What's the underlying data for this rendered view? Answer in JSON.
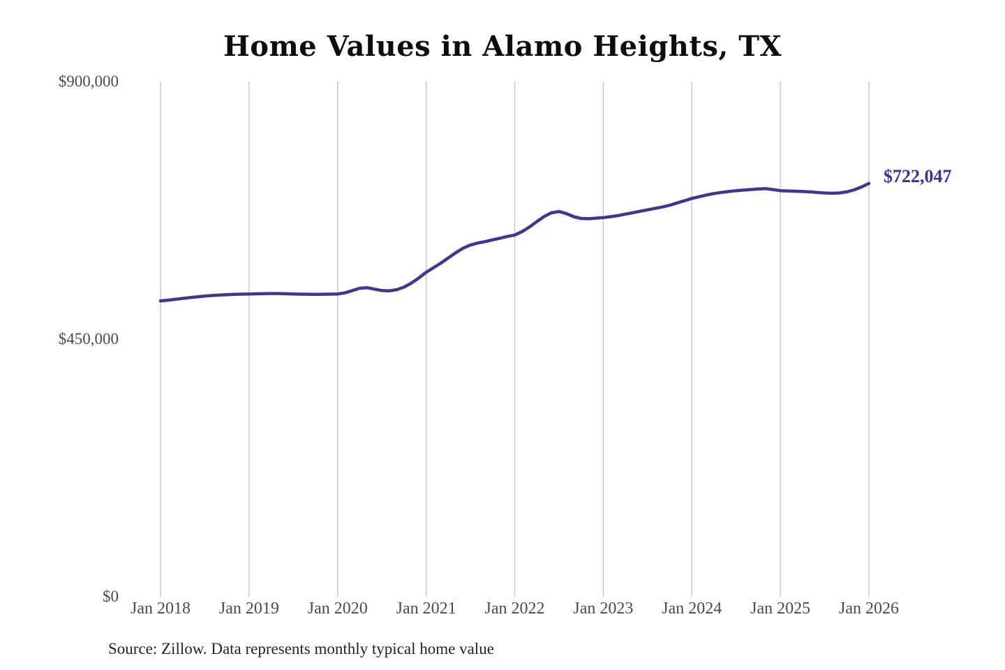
{
  "title": "Home Values in Alamo Heights, TX",
  "annotation": {
    "text": "$722,047"
  },
  "source": "Source: Zillow. Data represents monthly typical home value",
  "colors": {
    "line": "#3d3791",
    "annotation": "#3a3293",
    "gridline": "#c9c9c9",
    "axis_label": "#4b4b4b",
    "title": "#0d0d0d",
    "source": "#232323",
    "background": "#ffffff"
  },
  "chart_data": {
    "type": "line",
    "title": "Home Values in Alamo Heights, TX",
    "xlabel": "",
    "ylabel": "",
    "ylim": [
      0,
      900000
    ],
    "grid": "vertical-only",
    "legend": "none",
    "y_ticks": [
      {
        "value": 900000,
        "label": "$900,000"
      },
      {
        "value": 450000,
        "label": "$450,000"
      },
      {
        "value": 0,
        "label": "$0"
      }
    ],
    "x_ticks": [
      {
        "index": 0,
        "label": "Jan 2018"
      },
      {
        "index": 12,
        "label": "Jan 2019"
      },
      {
        "index": 24,
        "label": "Jan 2020"
      },
      {
        "index": 36,
        "label": "Jan 2021"
      },
      {
        "index": 48,
        "label": "Jan 2022"
      },
      {
        "index": 60,
        "label": "Jan 2023"
      },
      {
        "index": 72,
        "label": "Jan 2024"
      },
      {
        "index": 84,
        "label": "Jan 2025"
      },
      {
        "index": 96,
        "label": "Jan 2026"
      }
    ],
    "x": [
      "2018-01",
      "2018-02",
      "2018-03",
      "2018-04",
      "2018-05",
      "2018-06",
      "2018-07",
      "2018-08",
      "2018-09",
      "2018-10",
      "2018-11",
      "2018-12",
      "2019-01",
      "2019-02",
      "2019-03",
      "2019-04",
      "2019-05",
      "2019-06",
      "2019-07",
      "2019-08",
      "2019-09",
      "2019-10",
      "2019-11",
      "2019-12",
      "2020-01",
      "2020-02",
      "2020-03",
      "2020-04",
      "2020-05",
      "2020-06",
      "2020-07",
      "2020-08",
      "2020-09",
      "2020-10",
      "2020-11",
      "2020-12",
      "2021-01",
      "2021-02",
      "2021-03",
      "2021-04",
      "2021-05",
      "2021-06",
      "2021-07",
      "2021-08",
      "2021-09",
      "2021-10",
      "2021-11",
      "2021-12",
      "2022-01",
      "2022-02",
      "2022-03",
      "2022-04",
      "2022-05",
      "2022-06",
      "2022-07",
      "2022-08",
      "2022-09",
      "2022-10",
      "2022-11",
      "2022-12",
      "2023-01",
      "2023-02",
      "2023-03",
      "2023-04",
      "2023-05",
      "2023-06",
      "2023-07",
      "2023-08",
      "2023-09",
      "2023-10",
      "2023-11",
      "2023-12",
      "2024-01",
      "2024-02",
      "2024-03",
      "2024-04",
      "2024-05",
      "2024-06",
      "2024-07",
      "2024-08",
      "2024-09",
      "2024-10",
      "2024-11",
      "2024-12",
      "2025-01",
      "2025-02",
      "2025-03",
      "2025-04",
      "2025-05",
      "2025-06",
      "2025-07",
      "2025-08",
      "2025-09",
      "2025-10",
      "2025-11",
      "2025-12",
      "2026-01"
    ],
    "values": [
      517000,
      518200,
      519600,
      521200,
      522800,
      524200,
      525400,
      526400,
      527200,
      527800,
      528300,
      528700,
      529000,
      529300,
      529600,
      529800,
      529700,
      529400,
      529000,
      528700,
      528500,
      528400,
      528500,
      528700,
      529000,
      531000,
      535000,
      539000,
      540000,
      537500,
      535000,
      534500,
      536500,
      541000,
      548000,
      557000,
      567000,
      575000,
      583000,
      592000,
      601000,
      609000,
      614500,
      618000,
      620500,
      623500,
      626500,
      629500,
      632000,
      638000,
      646000,
      655500,
      664500,
      671000,
      673000,
      669500,
      664000,
      661000,
      660500,
      661500,
      662500,
      664000,
      666000,
      668500,
      671000,
      673500,
      676000,
      678500,
      681000,
      684000,
      688000,
      692000,
      696000,
      699000,
      702000,
      704500,
      706500,
      708000,
      709500,
      710500,
      711500,
      712500,
      713000,
      711500,
      709500,
      709000,
      708500,
      708000,
      707500,
      706500,
      705500,
      705000,
      705500,
      707500,
      711000,
      716000,
      722047
    ]
  }
}
